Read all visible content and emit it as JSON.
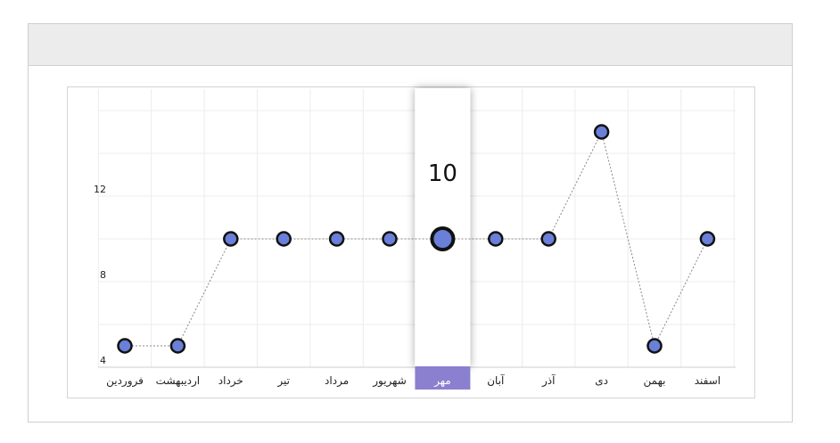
{
  "chart_data": {
    "type": "line",
    "categories": [
      "فروردین",
      "اردیبهشت",
      "خرداد",
      "تیر",
      "مرداد",
      "شهریور",
      "مهر",
      "آبان",
      "آذر",
      "دی",
      "بهمن",
      "اسفند"
    ],
    "series": [
      {
        "values": [
          5,
          5,
          10,
          10,
          10,
          10,
          10,
          10,
          10,
          15,
          5,
          10
        ]
      }
    ],
    "y_ticks": [
      "4",
      "8",
      "12"
    ],
    "ylim": [
      4,
      16
    ],
    "grid": true,
    "highlight": {
      "index": 6,
      "value_label": "10"
    },
    "colors": {
      "marker_fill": "#6a7fd8",
      "marker_stroke": "#111111",
      "line": "#888888",
      "highlight_band": "#8b7fd0",
      "grid": "#ececec"
    }
  }
}
